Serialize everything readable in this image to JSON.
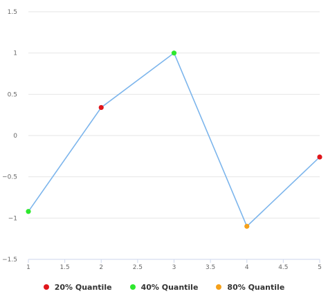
{
  "chart_data": {
    "type": "line",
    "x": [
      1,
      2,
      3,
      4,
      5
    ],
    "y": [
      -0.92,
      0.34,
      1.0,
      -1.1,
      -0.26
    ],
    "point_categories": [
      "20% Quantile",
      "40% Quantile",
      "80% Quantile"
    ],
    "point_category_index": [
      1,
      0,
      1,
      2,
      0
    ],
    "category_colors": [
      "#e0161b",
      "#2ee82e",
      "#f5a01a"
    ],
    "line_color": "#7cb5ec",
    "xlim": [
      1,
      5
    ],
    "ylim": [
      -1.5,
      1.5
    ],
    "x_ticks": [
      "1",
      "1.5",
      "2",
      "2.5",
      "3",
      "3.5",
      "4",
      "4.5",
      "5"
    ],
    "y_ticks": [
      "1.5",
      "1",
      "0.5",
      "0",
      "−0.5",
      "−1",
      "−1.5"
    ],
    "grid": true,
    "legend_position": "bottom",
    "title": "",
    "xlabel": "",
    "ylabel": ""
  }
}
